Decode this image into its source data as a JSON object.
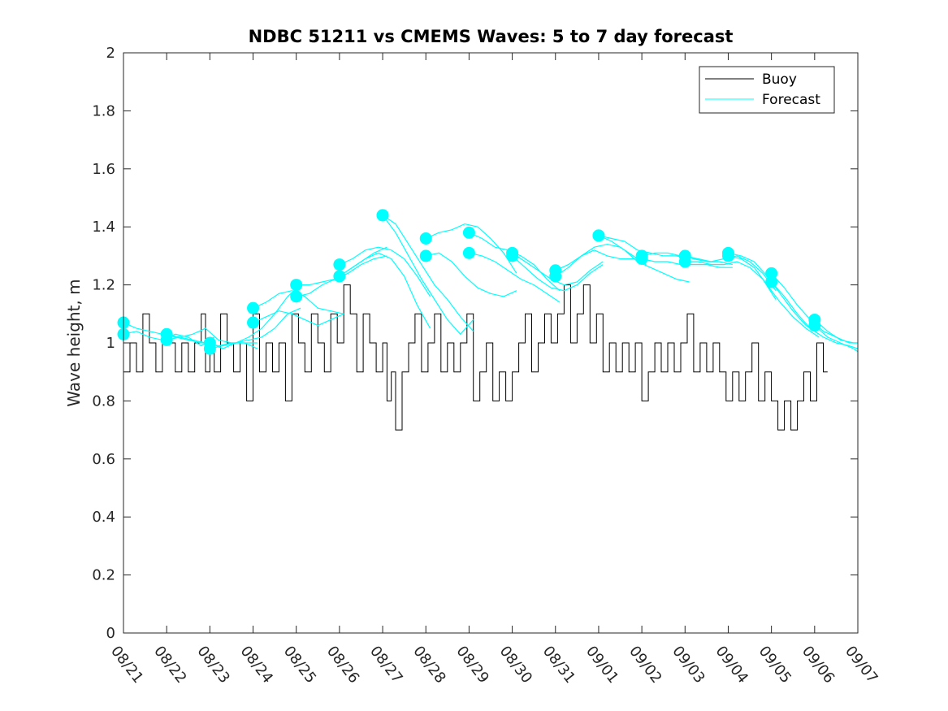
{
  "chart_data": {
    "type": "line",
    "title": "NDBC 51211 vs CMEMS Waves: 5 to 7 day forecast",
    "xlabel": "",
    "ylabel": "Wave height, m",
    "xlim": [
      0,
      17
    ],
    "ylim": [
      0,
      2
    ],
    "yticks": [
      0,
      0.2,
      0.4,
      0.6,
      0.8,
      1,
      1.2,
      1.4,
      1.6,
      1.8,
      2
    ],
    "ytick_labels": [
      "0",
      "0.2",
      "0.4",
      "0.6",
      "0.8",
      "1",
      "1.2",
      "1.4",
      "1.6",
      "1.8",
      "2"
    ],
    "xtick_labels": [
      "08/21",
      "08/22",
      "08/23",
      "08/24",
      "08/25",
      "08/26",
      "08/27",
      "08/28",
      "08/29",
      "08/30",
      "08/31",
      "09/01",
      "09/02",
      "09/03",
      "09/04",
      "09/05",
      "09/06",
      "09/07"
    ],
    "legend": {
      "position": "top-right",
      "entries": [
        "Buoy",
        "Forecast"
      ]
    },
    "colors": {
      "buoy": "#000000",
      "forecast": "#00ffff"
    },
    "series": [
      {
        "name": "Buoy",
        "x": [
          0.0,
          0.15,
          0.3,
          0.45,
          0.6,
          0.75,
          0.9,
          1.05,
          1.2,
          1.35,
          1.5,
          1.65,
          1.8,
          1.9,
          2.0,
          2.1,
          2.25,
          2.4,
          2.55,
          2.7,
          2.85,
          3.0,
          3.15,
          3.3,
          3.45,
          3.6,
          3.75,
          3.9,
          4.05,
          4.2,
          4.35,
          4.5,
          4.65,
          4.8,
          4.95,
          5.1,
          5.25,
          5.4,
          5.55,
          5.7,
          5.85,
          6.0,
          6.1,
          6.2,
          6.3,
          6.45,
          6.6,
          6.75,
          6.9,
          7.05,
          7.2,
          7.35,
          7.5,
          7.65,
          7.8,
          7.95,
          8.1,
          8.25,
          8.4,
          8.55,
          8.7,
          8.85,
          9.0,
          9.15,
          9.3,
          9.45,
          9.6,
          9.75,
          9.9,
          10.05,
          10.2,
          10.35,
          10.5,
          10.65,
          10.8,
          10.95,
          11.1,
          11.25,
          11.4,
          11.55,
          11.7,
          11.85,
          12.0,
          12.15,
          12.3,
          12.45,
          12.6,
          12.75,
          12.9,
          13.05,
          13.2,
          13.35,
          13.5,
          13.65,
          13.8,
          13.95,
          14.1,
          14.25,
          14.4,
          14.55,
          14.7,
          14.85,
          15.0,
          15.15,
          15.3,
          15.45,
          15.6,
          15.75,
          15.9,
          16.05,
          16.2,
          16.3
        ],
        "values": [
          0.9,
          1.0,
          0.9,
          1.1,
          1.0,
          0.9,
          1.0,
          1.0,
          0.9,
          1.0,
          0.9,
          1.0,
          1.1,
          0.9,
          1.0,
          0.9,
          1.1,
          1.0,
          0.9,
          1.0,
          0.8,
          1.1,
          0.9,
          1.0,
          0.9,
          1.0,
          0.8,
          1.1,
          1.0,
          0.9,
          1.1,
          1.0,
          0.9,
          1.1,
          1.0,
          1.2,
          1.1,
          0.9,
          1.1,
          1.0,
          0.9,
          1.0,
          0.8,
          0.9,
          0.7,
          0.9,
          1.0,
          1.1,
          0.9,
          1.0,
          1.1,
          0.9,
          1.0,
          0.9,
          1.0,
          1.1,
          0.8,
          0.9,
          1.0,
          0.8,
          0.9,
          0.8,
          0.9,
          1.0,
          1.1,
          0.9,
          1.0,
          1.1,
          1.0,
          1.1,
          1.2,
          1.0,
          1.1,
          1.2,
          1.0,
          1.1,
          0.9,
          1.0,
          0.9,
          1.0,
          0.9,
          1.0,
          0.8,
          0.9,
          1.0,
          0.9,
          1.0,
          0.9,
          1.0,
          1.1,
          0.9,
          1.0,
          0.9,
          1.0,
          0.9,
          0.8,
          0.9,
          0.8,
          0.9,
          1.0,
          0.8,
          0.9,
          0.8,
          0.7,
          0.8,
          0.7,
          0.8,
          0.9,
          0.8,
          1.0,
          0.9,
          0.9
        ]
      },
      {
        "name": "Forecast",
        "x": [
          0.0,
          0.3,
          0.6,
          0.9,
          1.2,
          1.5,
          1.8,
          2.1
        ],
        "values": [
          1.07,
          1.05,
          1.04,
          1.03,
          1.02,
          1.01,
          1.0,
          1.0
        ]
      },
      {
        "name": "Forecast",
        "x": [
          0.0,
          0.3,
          0.6,
          0.9,
          1.2,
          1.5,
          1.8,
          2.1
        ],
        "values": [
          1.03,
          1.04,
          1.02,
          1.01,
          1.03,
          1.02,
          0.99,
          1.02
        ]
      },
      {
        "name": "Forecast",
        "x": [
          1.0,
          1.3,
          1.6,
          1.9,
          2.2,
          2.5,
          2.8,
          3.1
        ],
        "values": [
          1.03,
          1.02,
          1.03,
          1.05,
          1.01,
          1.0,
          1.0,
          1.0
        ]
      },
      {
        "name": "Forecast",
        "x": [
          1.0,
          1.3,
          1.6,
          1.9,
          2.2,
          2.5,
          2.8,
          3.1
        ],
        "values": [
          1.01,
          1.02,
          1.01,
          1.0,
          0.99,
          1.0,
          1.0,
          0.98
        ]
      },
      {
        "name": "Forecast",
        "x": [
          2.0,
          2.3,
          2.6,
          2.9,
          3.2,
          3.5,
          3.8,
          4.1
        ],
        "values": [
          1.0,
          0.98,
          1.0,
          1.02,
          1.05,
          1.1,
          1.16,
          1.2
        ]
      },
      {
        "name": "Forecast",
        "x": [
          2.0,
          2.3,
          2.6,
          2.9,
          3.2,
          3.5,
          3.8,
          4.1
        ],
        "values": [
          0.98,
          0.99,
          1.0,
          1.01,
          1.02,
          1.05,
          1.1,
          1.12
        ]
      },
      {
        "name": "Forecast",
        "x": [
          3.0,
          3.3,
          3.6,
          3.9,
          4.2,
          4.5,
          4.8,
          5.1
        ],
        "values": [
          1.12,
          1.14,
          1.17,
          1.18,
          1.16,
          1.12,
          1.11,
          1.1
        ]
      },
      {
        "name": "Forecast",
        "x": [
          3.0,
          3.3,
          3.6,
          3.9,
          4.2,
          4.5,
          4.8,
          5.1
        ],
        "values": [
          1.07,
          1.09,
          1.11,
          1.1,
          1.08,
          1.06,
          1.08,
          1.1
        ]
      },
      {
        "name": "Forecast",
        "x": [
          4.0,
          4.3,
          4.6,
          4.9,
          5.2,
          5.5,
          5.8,
          6.1
        ],
        "values": [
          1.2,
          1.2,
          1.21,
          1.22,
          1.25,
          1.28,
          1.31,
          1.33
        ]
      },
      {
        "name": "Forecast",
        "x": [
          4.0,
          4.3,
          4.6,
          4.9,
          5.2,
          5.5,
          5.8,
          6.1
        ],
        "values": [
          1.16,
          1.17,
          1.2,
          1.22,
          1.24,
          1.27,
          1.29,
          1.3
        ]
      },
      {
        "name": "Forecast",
        "x": [
          5.0,
          5.3,
          5.6,
          5.9,
          6.2,
          6.5,
          6.8,
          7.1
        ],
        "values": [
          1.27,
          1.29,
          1.32,
          1.33,
          1.32,
          1.29,
          1.23,
          1.16
        ]
      },
      {
        "name": "Forecast",
        "x": [
          5.0,
          5.3,
          5.6,
          5.9,
          6.2,
          6.5,
          6.8,
          7.1
        ],
        "values": [
          1.23,
          1.26,
          1.29,
          1.31,
          1.29,
          1.23,
          1.13,
          1.05
        ]
      },
      {
        "name": "Forecast",
        "x": [
          6.0,
          6.3,
          6.6,
          6.9,
          7.2,
          7.5,
          7.8,
          8.1
        ],
        "values": [
          1.44,
          1.41,
          1.34,
          1.27,
          1.2,
          1.15,
          1.09,
          1.04
        ]
      },
      {
        "name": "Forecast",
        "x": [
          6.0,
          6.3,
          6.6,
          6.9,
          7.2,
          7.5,
          7.8,
          8.1
        ],
        "values": [
          1.44,
          1.38,
          1.3,
          1.22,
          1.15,
          1.08,
          1.03,
          1.08
        ]
      },
      {
        "name": "Forecast",
        "x": [
          7.0,
          7.3,
          7.6,
          7.9,
          8.2,
          8.5,
          8.8,
          9.1
        ],
        "values": [
          1.36,
          1.38,
          1.39,
          1.41,
          1.4,
          1.36,
          1.31,
          1.24
        ]
      },
      {
        "name": "Forecast",
        "x": [
          7.0,
          7.3,
          7.6,
          7.9,
          8.2,
          8.5,
          8.8,
          9.1
        ],
        "values": [
          1.3,
          1.31,
          1.28,
          1.23,
          1.19,
          1.17,
          1.16,
          1.18
        ]
      },
      {
        "name": "Forecast",
        "x": [
          8.0,
          8.3,
          8.6,
          8.9,
          9.2,
          9.5,
          9.8,
          10.1
        ],
        "values": [
          1.38,
          1.36,
          1.33,
          1.32,
          1.3,
          1.27,
          1.22,
          1.18
        ]
      },
      {
        "name": "Forecast",
        "x": [
          8.0,
          8.3,
          8.6,
          8.9,
          9.2,
          9.5,
          9.8,
          10.1
        ],
        "values": [
          1.31,
          1.3,
          1.28,
          1.25,
          1.22,
          1.2,
          1.17,
          1.14
        ]
      },
      {
        "name": "Forecast",
        "x": [
          9.0,
          9.3,
          9.6,
          9.9,
          10.2,
          10.5,
          10.8,
          11.1
        ],
        "values": [
          1.31,
          1.28,
          1.25,
          1.22,
          1.2,
          1.21,
          1.25,
          1.28
        ]
      },
      {
        "name": "Forecast",
        "x": [
          9.0,
          9.3,
          9.6,
          9.9,
          10.2,
          10.5,
          10.8,
          11.1
        ],
        "values": [
          1.3,
          1.26,
          1.22,
          1.19,
          1.18,
          1.2,
          1.24,
          1.27
        ]
      },
      {
        "name": "Forecast",
        "x": [
          10.0,
          10.3,
          10.6,
          10.9,
          11.2,
          11.5,
          11.8,
          12.1
        ],
        "values": [
          1.25,
          1.27,
          1.3,
          1.32,
          1.3,
          1.29,
          1.29,
          1.3
        ]
      },
      {
        "name": "Forecast",
        "x": [
          10.0,
          10.3,
          10.6,
          10.9,
          11.2,
          11.5,
          11.8,
          12.1
        ],
        "values": [
          1.23,
          1.26,
          1.3,
          1.33,
          1.34,
          1.33,
          1.3,
          1.27
        ]
      },
      {
        "name": "Forecast",
        "x": [
          11.0,
          11.3,
          11.6,
          11.9,
          12.2,
          12.5,
          12.8,
          13.1
        ],
        "values": [
          1.37,
          1.36,
          1.35,
          1.32,
          1.31,
          1.3,
          1.3,
          1.29
        ]
      },
      {
        "name": "Forecast",
        "x": [
          11.0,
          11.3,
          11.6,
          11.9,
          12.2,
          12.5,
          12.8,
          13.1
        ],
        "values": [
          1.37,
          1.35,
          1.32,
          1.28,
          1.26,
          1.24,
          1.22,
          1.21
        ]
      },
      {
        "name": "Forecast",
        "x": [
          12.0,
          12.3,
          12.6,
          12.9,
          13.2,
          13.5,
          13.8,
          14.1
        ],
        "values": [
          1.3,
          1.31,
          1.31,
          1.3,
          1.29,
          1.28,
          1.28,
          1.27
        ]
      },
      {
        "name": "Forecast",
        "x": [
          12.0,
          12.3,
          12.6,
          12.9,
          13.2,
          13.5,
          13.8,
          14.1
        ],
        "values": [
          1.29,
          1.28,
          1.28,
          1.27,
          1.27,
          1.27,
          1.26,
          1.26
        ]
      },
      {
        "name": "Forecast",
        "x": [
          13.0,
          13.3,
          13.6,
          13.9,
          14.2,
          14.5,
          14.8,
          15.1
        ],
        "values": [
          1.3,
          1.29,
          1.28,
          1.29,
          1.3,
          1.28,
          1.24,
          1.18
        ]
      },
      {
        "name": "Forecast",
        "x": [
          13.0,
          13.3,
          13.6,
          13.9,
          14.2,
          14.5,
          14.8,
          15.1
        ],
        "values": [
          1.28,
          1.28,
          1.27,
          1.27,
          1.28,
          1.26,
          1.22,
          1.15
        ]
      },
      {
        "name": "Forecast",
        "x": [
          14.0,
          14.3,
          14.6,
          14.9,
          15.2,
          15.5,
          15.8,
          16.1
        ],
        "values": [
          1.31,
          1.3,
          1.28,
          1.23,
          1.17,
          1.11,
          1.06,
          1.03
        ]
      },
      {
        "name": "Forecast",
        "x": [
          14.0,
          14.3,
          14.6,
          14.9,
          15.2,
          15.5,
          15.8,
          16.1
        ],
        "values": [
          1.3,
          1.29,
          1.26,
          1.2,
          1.14,
          1.09,
          1.05,
          1.02
        ]
      },
      {
        "name": "Forecast",
        "x": [
          15.0,
          15.3,
          15.6,
          15.9,
          16.2,
          16.5,
          16.8,
          17.0
        ],
        "values": [
          1.24,
          1.19,
          1.13,
          1.08,
          1.04,
          1.02,
          1.0,
          1.0
        ]
      },
      {
        "name": "Forecast",
        "x": [
          15.0,
          15.3,
          15.6,
          15.9,
          16.2,
          16.5,
          16.8,
          17.0
        ],
        "values": [
          1.21,
          1.16,
          1.1,
          1.05,
          1.02,
          1.0,
          0.99,
          0.98
        ]
      },
      {
        "name": "Forecast",
        "x": [
          16.0,
          16.3,
          16.6,
          16.9,
          17.0
        ],
        "values": [
          1.08,
          1.04,
          1.01,
          1.0,
          1.0
        ]
      },
      {
        "name": "Forecast",
        "x": [
          16.0,
          16.3,
          16.6,
          16.9,
          17.0
        ],
        "values": [
          1.06,
          1.02,
          1.0,
          0.98,
          0.97
        ]
      }
    ]
  }
}
